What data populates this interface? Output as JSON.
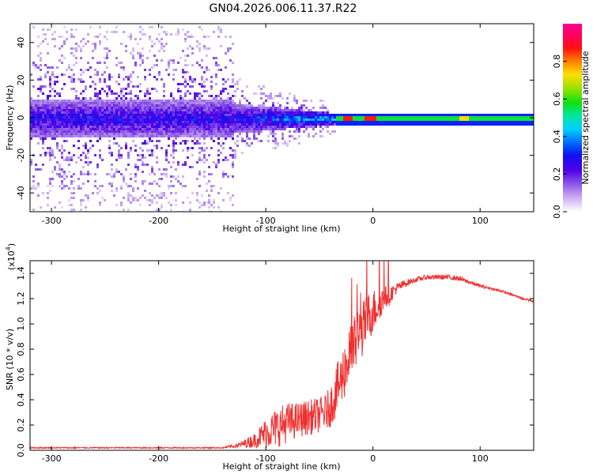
{
  "figure_title": "GN04.2026.006.11.37.R22",
  "colorbar": {
    "label": "Normalized spectral amplitude",
    "range": [
      0,
      1
    ],
    "ticks": [
      "0.0",
      "0.2",
      "0.4",
      "0.6",
      "0.8"
    ],
    "tick_values": [
      0,
      0.2,
      0.4,
      0.6,
      0.8
    ],
    "palette": [
      "#ffffff",
      "#c8a8f0",
      "#8a55e6",
      "#5000e6",
      "#1010f0",
      "#0070ff",
      "#00d0ff",
      "#00e6a0",
      "#10e010",
      "#a0e000",
      "#ffe000",
      "#ff8000",
      "#ff1010",
      "#ff0060",
      "#ff0090"
    ]
  },
  "chart_data": [
    {
      "type": "heatmap",
      "name": "spectrogram",
      "xlabel": "Height of straight line (km)",
      "ylabel": "Frequency (Hz)",
      "xlim": [
        -320,
        150
      ],
      "ylim": [
        -50,
        50
      ],
      "x_ticks": [
        "-300",
        "-200",
        "-100",
        "0",
        "100"
      ],
      "x_tick_values": [
        -300,
        -200,
        -100,
        0,
        100
      ],
      "y_ticks": [
        "-40",
        "-20",
        "0",
        "20",
        "40"
      ],
      "y_tick_values": [
        -40,
        -20,
        0,
        20,
        40
      ],
      "segments": [
        {
          "x_start": -320,
          "x_end": -130,
          "noise": "broadband scattered",
          "max_amplitude": 0.3
        },
        {
          "x_start": -130,
          "x_end": -35,
          "noise": "narrowing band near 0 Hz",
          "max_amplitude": 0.5
        },
        {
          "x_start": -35,
          "x_end": 150,
          "noise": "steady band near 0 Hz",
          "max_amplitude": 0.9
        }
      ]
    },
    {
      "type": "line",
      "name": "snr",
      "xlabel": "Height of straight line (km)",
      "ylabel": "SNR (10 * v/v)",
      "y_scale_note": "(x10",
      "y_scale_exp": "4",
      "y_scale_close": ")",
      "xlim": [
        -320,
        150
      ],
      "ylim": [
        0,
        1.5
      ],
      "x_ticks": [
        "-300",
        "-200",
        "-100",
        "0",
        "100"
      ],
      "x_tick_values": [
        -300,
        -200,
        -100,
        0,
        100
      ],
      "y_ticks": [
        "0.0",
        "0.2",
        "0.4",
        "0.6",
        "0.8",
        "1.0",
        "1.2",
        "1.4"
      ],
      "y_tick_values": [
        0,
        0.2,
        0.4,
        0.6,
        0.8,
        1.0,
        1.2,
        1.4
      ],
      "color": "#f03030",
      "series": [
        {
          "name": "SNR",
          "x": [
            -320,
            -250,
            -180,
            -140,
            -125,
            -110,
            -100,
            -90,
            -80,
            -70,
            -60,
            -50,
            -45,
            -40,
            -35,
            -30,
            -25,
            -20,
            -15,
            -10,
            -5,
            0,
            5,
            10,
            15,
            20,
            30,
            40,
            50,
            60,
            70,
            80,
            90,
            100,
            110,
            120,
            130,
            140,
            150
          ],
          "y": [
            0.02,
            0.02,
            0.02,
            0.02,
            0.04,
            0.08,
            0.14,
            0.18,
            0.22,
            0.24,
            0.26,
            0.28,
            0.3,
            0.34,
            0.45,
            0.55,
            0.68,
            0.78,
            0.88,
            0.95,
            1.05,
            1.1,
            1.15,
            1.2,
            1.22,
            1.27,
            1.32,
            1.35,
            1.37,
            1.37,
            1.37,
            1.36,
            1.33,
            1.3,
            1.28,
            1.26,
            1.23,
            1.2,
            1.18
          ],
          "noise_amplitude": [
            0.005,
            0.005,
            0.005,
            0.005,
            0.02,
            0.06,
            0.12,
            0.16,
            0.16,
            0.14,
            0.14,
            0.14,
            0.14,
            0.16,
            0.2,
            0.22,
            0.24,
            0.24,
            0.24,
            0.22,
            0.2,
            0.18,
            0.14,
            0.1,
            0.08,
            0.05,
            0.03,
            0.02,
            0.02,
            0.02,
            0.02,
            0.02,
            0.015,
            0.015,
            0.01,
            0.01,
            0.01,
            0.01,
            0.01
          ]
        }
      ]
    }
  ]
}
